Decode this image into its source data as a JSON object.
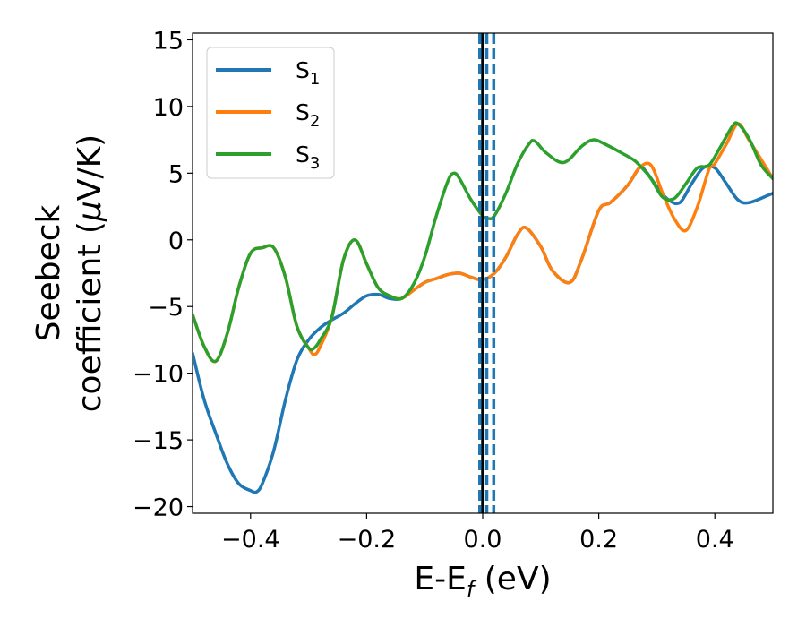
{
  "chart_data": {
    "type": "line",
    "xlabel": {
      "main": "E-E",
      "sub": "f",
      "suffix": " (eV)"
    },
    "ylabel": {
      "line1": "Seebeck",
      "line2": "coefficient  (",
      "mu": "μ",
      "line2_end": "V/K)"
    },
    "xlim": [
      -0.5,
      0.5
    ],
    "ylim": [
      -20.5,
      15.5
    ],
    "xticks": [
      -0.4,
      -0.2,
      0.0,
      0.2,
      0.4
    ],
    "xtick_labels": [
      "−0.4",
      "−0.2",
      "0.0",
      "0.2",
      "0.4"
    ],
    "yticks": [
      15,
      10,
      5,
      0,
      -5,
      -10,
      -15,
      -20
    ],
    "ytick_labels": [
      "15",
      "10",
      "5",
      "0",
      "−5",
      "−10",
      "−15",
      "−20"
    ],
    "grid": false,
    "legend_position": "top-left",
    "reference_lines": [
      {
        "x": 0.0,
        "style": "solid",
        "color": "#000000"
      },
      {
        "x": -0.005,
        "style": "dashed",
        "color": "#1f77b4"
      },
      {
        "x": 0.007,
        "style": "dashed",
        "color": "#1f77b4"
      },
      {
        "x": 0.019,
        "style": "dashed",
        "color": "#1f77b4"
      }
    ],
    "series": [
      {
        "name": "S",
        "sub": "1",
        "color": "#1f77b4",
        "x": [
          -0.5,
          -0.48,
          -0.46,
          -0.44,
          -0.42,
          -0.4,
          -0.39,
          -0.38,
          -0.36,
          -0.34,
          -0.32,
          -0.3,
          -0.28,
          -0.26,
          -0.24,
          -0.22,
          -0.2,
          -0.18,
          -0.16,
          -0.14,
          -0.12,
          -0.1,
          -0.08,
          -0.06,
          -0.04,
          -0.02,
          0.0,
          0.02,
          0.04,
          0.06,
          0.075,
          0.1,
          0.12,
          0.15,
          0.17,
          0.2,
          0.22,
          0.25,
          0.27,
          0.28,
          0.3,
          0.32,
          0.34,
          0.36,
          0.38,
          0.4,
          0.42,
          0.44,
          0.46,
          0.5
        ],
        "y": [
          -8.5,
          -12,
          -14.5,
          -16.8,
          -18.3,
          -18.8,
          -18.9,
          -18.3,
          -15.8,
          -12,
          -9,
          -7.5,
          -6.6,
          -6,
          -5.5,
          -4.8,
          -4.2,
          -4.1,
          -4.4,
          -4.4,
          -3.8,
          -3.2,
          -2.9,
          -2.6,
          -2.5,
          -2.8,
          -3,
          -2.5,
          -1.3,
          0.4,
          0.9,
          -0.5,
          -2.3,
          -3.2,
          -1.5,
          2.2,
          2.8,
          4.1,
          5.4,
          5.2,
          4,
          3,
          2.8,
          4.2,
          5.4,
          5.4,
          4.2,
          3,
          2.8,
          3.5
        ]
      },
      {
        "name": "S",
        "sub": "2",
        "color": "#ff7f0e",
        "x": [
          -0.5,
          -0.48,
          -0.46,
          -0.44,
          -0.42,
          -0.4,
          -0.38,
          -0.36,
          -0.34,
          -0.32,
          -0.3,
          -0.29,
          -0.28,
          -0.26,
          -0.24,
          -0.22,
          -0.2,
          -0.18,
          -0.16,
          -0.14,
          -0.12,
          -0.1,
          -0.08,
          -0.06,
          -0.04,
          -0.02,
          0.0,
          0.02,
          0.04,
          0.06,
          0.075,
          0.1,
          0.12,
          0.15,
          0.17,
          0.2,
          0.22,
          0.25,
          0.27,
          0.29,
          0.31,
          0.33,
          0.35,
          0.37,
          0.39,
          0.4,
          0.42,
          0.44,
          0.46,
          0.5
        ],
        "y": [
          -5.6,
          -8,
          -9.1,
          -7,
          -3.5,
          -1,
          -0.6,
          -0.6,
          -2.8,
          -6.5,
          -8.1,
          -8.6,
          -8,
          -5.8,
          -1.5,
          0,
          -1.8,
          -3.6,
          -4.2,
          -4.4,
          -3.8,
          -3.2,
          -2.9,
          -2.6,
          -2.5,
          -2.8,
          -3,
          -2.5,
          -1.3,
          0.4,
          0.9,
          -0.5,
          -2.3,
          -3.2,
          -1.5,
          2.2,
          2.8,
          4.1,
          5.4,
          5.6,
          3.5,
          1.6,
          0.7,
          2.5,
          5.3,
          5.7,
          7.2,
          8.7,
          7.4,
          4.6
        ]
      },
      {
        "name": "S",
        "sub": "3",
        "color": "#2ca02c",
        "x": [
          -0.5,
          -0.48,
          -0.46,
          -0.44,
          -0.42,
          -0.4,
          -0.38,
          -0.36,
          -0.34,
          -0.32,
          -0.3,
          -0.29,
          -0.28,
          -0.26,
          -0.24,
          -0.22,
          -0.2,
          -0.18,
          -0.16,
          -0.14,
          -0.12,
          -0.1,
          -0.08,
          -0.06,
          -0.05,
          -0.04,
          -0.02,
          0.0,
          0.01,
          0.02,
          0.04,
          0.06,
          0.08,
          0.09,
          0.11,
          0.14,
          0.17,
          0.19,
          0.21,
          0.24,
          0.26,
          0.27,
          0.29,
          0.31,
          0.33,
          0.35,
          0.37,
          0.39,
          0.41,
          0.43,
          0.44,
          0.46,
          0.48,
          0.5
        ],
        "y": [
          -5.6,
          -8,
          -9.1,
          -7,
          -3.5,
          -1,
          -0.6,
          -0.6,
          -2.8,
          -6.5,
          -8.1,
          -8.1,
          -7.5,
          -5.8,
          -1.5,
          0,
          -1.8,
          -3.6,
          -4.2,
          -4.4,
          -3.4,
          -1.3,
          1.8,
          4.4,
          5,
          4.6,
          3,
          1.8,
          1.6,
          1.8,
          3.5,
          5.7,
          7.2,
          7.4,
          6.5,
          5.8,
          7,
          7.5,
          7.2,
          6.5,
          6,
          5.6,
          4.6,
          3.2,
          3.1,
          4.2,
          5.4,
          5.6,
          7,
          8.5,
          8.7,
          7.5,
          5.6,
          4.6
        ]
      }
    ]
  }
}
